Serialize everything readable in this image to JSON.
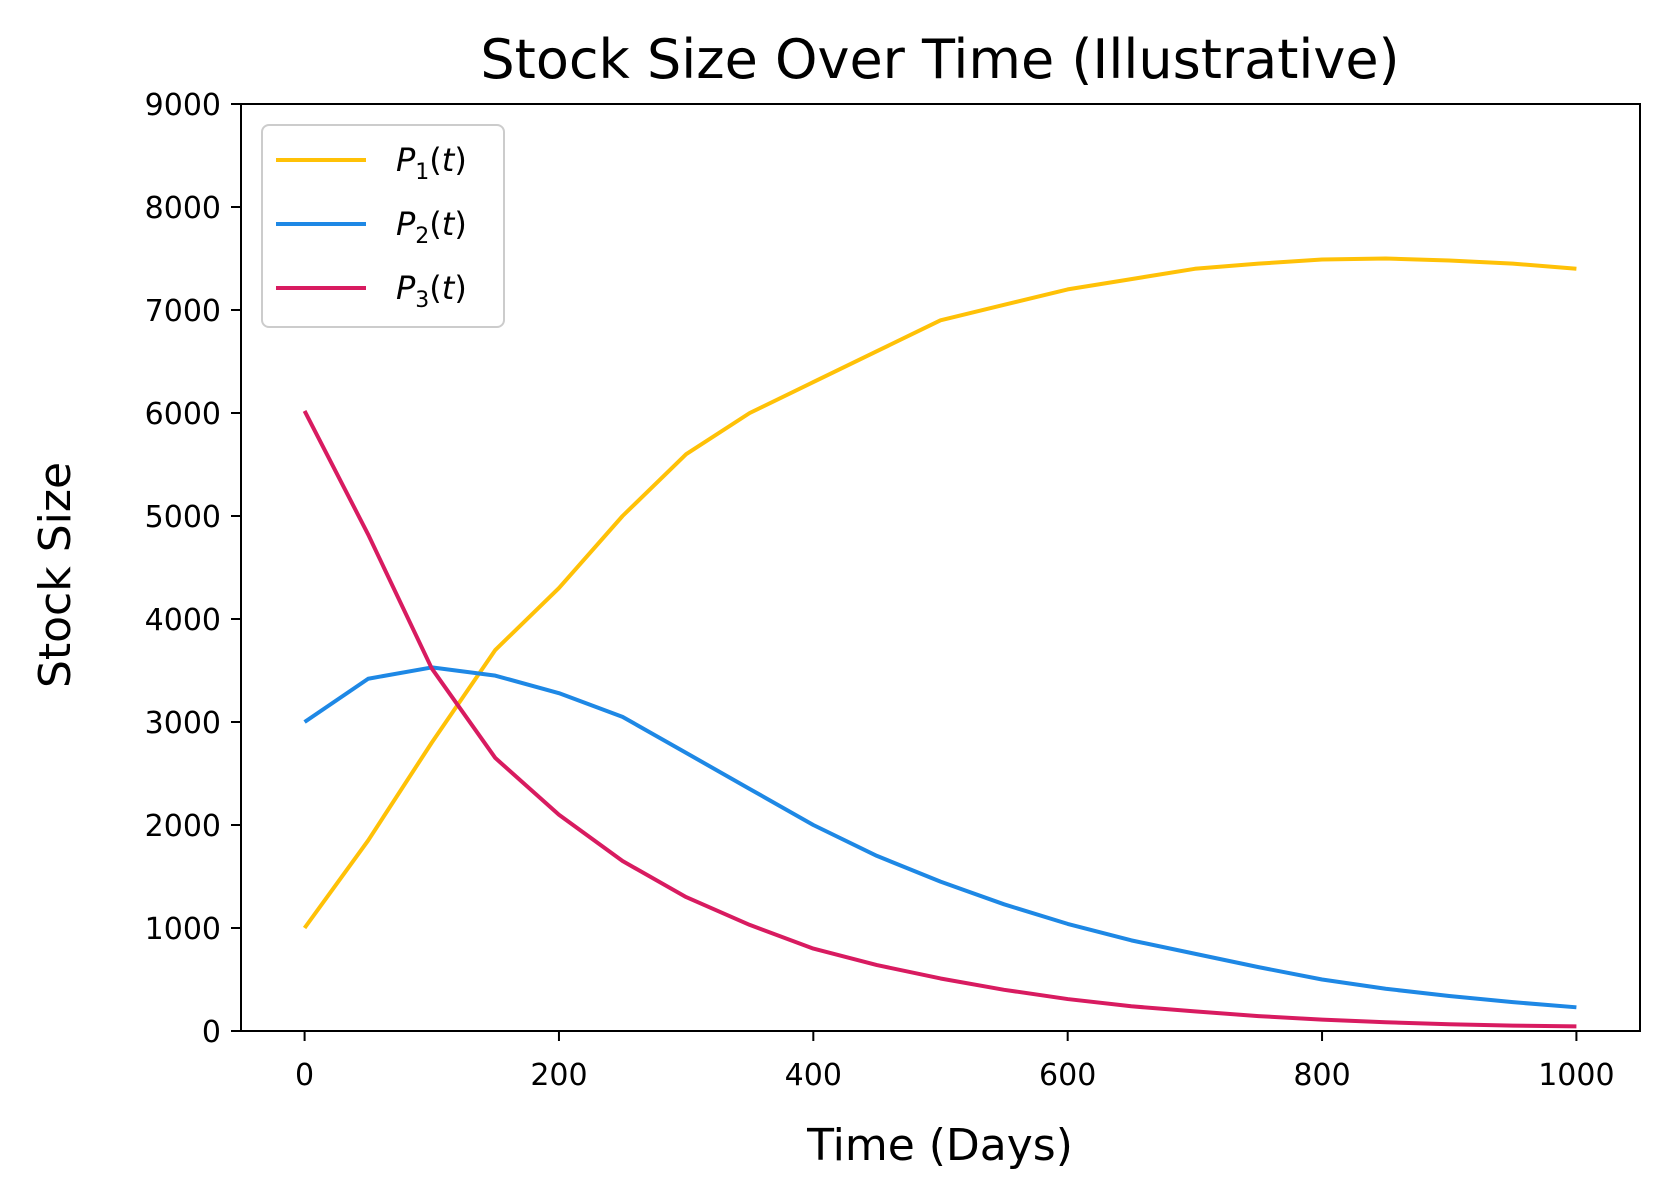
{
  "chart_data": {
    "type": "line",
    "title": "Stock Size Over Time (Illustrative)",
    "xlabel": "Time (Days)",
    "ylabel": "Stock Size",
    "xlim": [
      -50,
      1050
    ],
    "ylim": [
      0,
      9000
    ],
    "xticks": [
      0,
      200,
      400,
      600,
      800,
      1000
    ],
    "yticks": [
      0,
      1000,
      2000,
      3000,
      4000,
      5000,
      6000,
      7000,
      8000,
      9000
    ],
    "grid": false,
    "legend_position": "upper-left",
    "x": [
      0,
      50,
      100,
      150,
      200,
      250,
      300,
      350,
      400,
      450,
      500,
      550,
      600,
      650,
      700,
      750,
      800,
      850,
      900,
      950,
      1000
    ],
    "series": [
      {
        "name": "P",
        "subscript": "1",
        "arg": "(t)",
        "color": "#FFC107",
        "values": [
          1000,
          1850,
          2800,
          3700,
          4300,
          5000,
          5600,
          6000,
          6300,
          6600,
          6900,
          7050,
          7200,
          7300,
          7400,
          7450,
          7490,
          7500,
          7480,
          7450,
          7400
        ]
      },
      {
        "name": "P",
        "subscript": "2",
        "arg": "(t)",
        "color": "#1E88E5",
        "values": [
          3000,
          3420,
          3530,
          3450,
          3280,
          3050,
          2700,
          2350,
          2000,
          1700,
          1450,
          1230,
          1040,
          880,
          750,
          620,
          500,
          410,
          340,
          280,
          230
        ]
      },
      {
        "name": "P",
        "subscript": "3",
        "arg": "(t)",
        "color": "#D81B60",
        "values": [
          6020,
          4820,
          3520,
          2650,
          2100,
          1650,
          1300,
          1030,
          800,
          640,
          510,
          400,
          310,
          240,
          190,
          145,
          110,
          85,
          65,
          52,
          45
        ]
      }
    ]
  }
}
